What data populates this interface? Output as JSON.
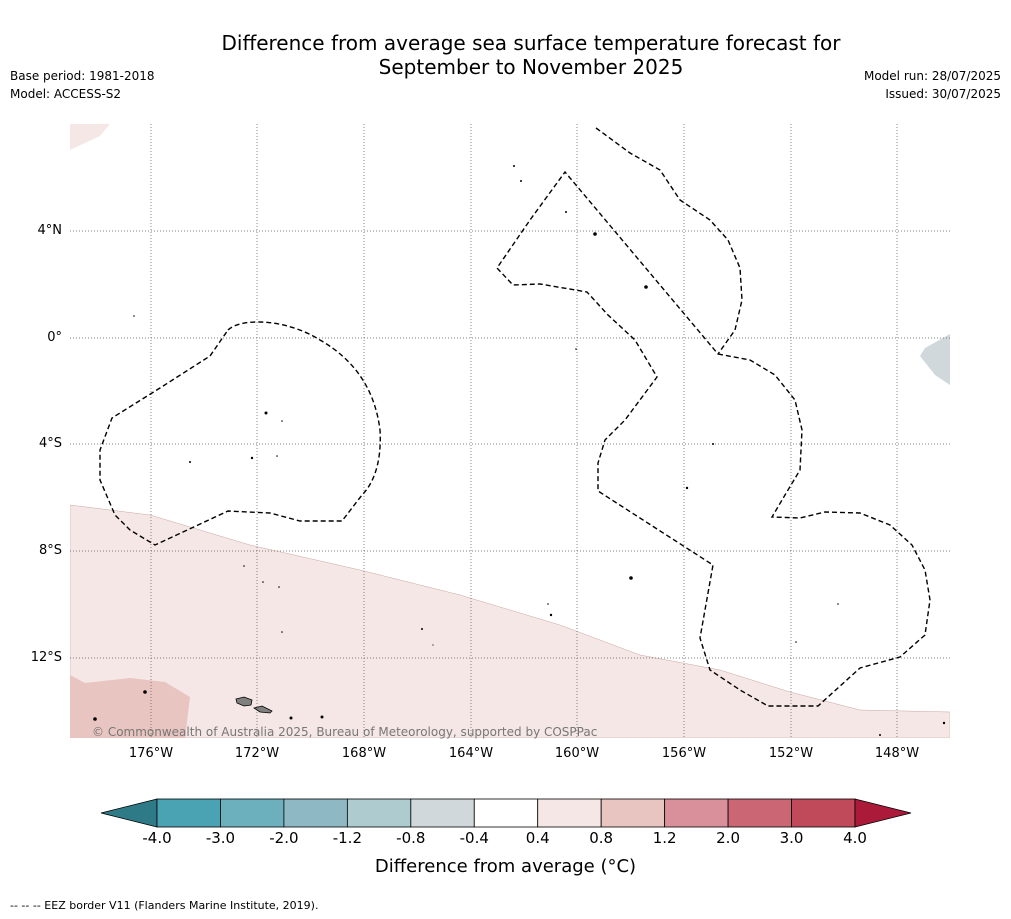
{
  "title_line1": "Difference from average sea surface temperature forecast for",
  "title_line2": "September to November 2025",
  "base_period": "Base period: 1981-2018",
  "model": "Model: ACCESS-S2",
  "model_run": "Model run: 28/07/2025",
  "issued": "Issued: 30/07/2025",
  "lat_labels": [
    "4°N",
    "0°",
    "4°S",
    "8°S",
    "12°S"
  ],
  "lon_labels": [
    "176°W",
    "172°W",
    "168°W",
    "164°W",
    "160°W",
    "156°W",
    "152°W",
    "148°W"
  ],
  "copyright": "© Commonwealth of Australia 2025, Bureau of Meteorology, supported by COSPPac",
  "colorbar": {
    "title": "Difference from average (°C)",
    "ticks": [
      "-4.0",
      "-3.0",
      "-2.0",
      "-1.2",
      "-0.8",
      "-0.4",
      "0.4",
      "0.8",
      "1.2",
      "2.0",
      "3.0",
      "4.0"
    ],
    "colors": {
      "under": "#2e7a87",
      "bins": [
        "#4aa3b3",
        "#6cafbd",
        "#8eb9c4",
        "#aecbd0",
        "#d0d8db",
        "#ffffff",
        "#f5e7e5",
        "#e8c5c0",
        "#d9909a",
        "#cb6774",
        "#c04a5a"
      ],
      "over": "#ac1a3a"
    }
  },
  "anomaly_colors": {
    "slightly_warm": "#f5e7e5",
    "warm": "#e8c5c0",
    "slightly_cool": "#d0d8db"
  },
  "footer": "--  --  -- EEZ border V11 (Flanders Marine Institute, 2019)."
}
